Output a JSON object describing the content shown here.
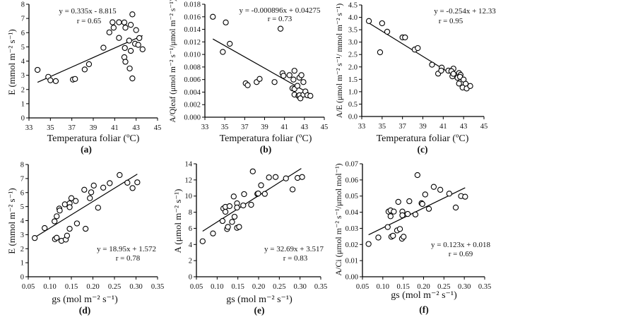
{
  "figure": {
    "background": "#ffffff",
    "marker_color": "#000000",
    "line_color": "#000000"
  },
  "chart_data": [
    {
      "id": "a",
      "type": "scatter",
      "panel_label": "(a)",
      "xlabel": "Temperatura foliar (ºC)",
      "ylabel": "E (mmol m⁻² s⁻¹)",
      "xlim": [
        33,
        45
      ],
      "ylim": [
        0,
        8
      ],
      "xticks": [
        33,
        35,
        37,
        39,
        41,
        43,
        45
      ],
      "xtick_labels": [
        "33",
        "35",
        "37",
        "39",
        "41",
        "43",
        "45"
      ],
      "yticks": [
        0,
        1,
        2,
        3,
        4,
        5,
        6,
        7,
        8
      ],
      "ytick_labels": [
        "0",
        "1",
        "2",
        "3",
        "4",
        "5",
        "6",
        "7",
        "8"
      ],
      "grid": false,
      "annotation": [
        "y = 0.335x - 8.815",
        "r = 0.65"
      ],
      "annotation_position": "top-center",
      "fit": {
        "slope": 0.335,
        "intercept": -8.815,
        "x_range": [
          33.8,
          43.6
        ]
      },
      "points": [
        [
          33.8,
          3.38
        ],
        [
          34.8,
          2.89
        ],
        [
          35.0,
          2.65
        ],
        [
          35.5,
          2.59
        ],
        [
          37.1,
          2.7
        ],
        [
          37.3,
          2.74
        ],
        [
          38.2,
          3.41
        ],
        [
          38.6,
          3.78
        ],
        [
          39.95,
          4.94
        ],
        [
          40.5,
          6.02
        ],
        [
          40.8,
          6.73
        ],
        [
          40.9,
          6.35
        ],
        [
          41.4,
          5.63
        ],
        [
          41.4,
          6.73
        ],
        [
          41.9,
          6.72
        ],
        [
          42.0,
          6.35
        ],
        [
          41.9,
          4.27
        ],
        [
          41.95,
          4.92
        ],
        [
          42.0,
          3.95
        ],
        [
          42.35,
          5.44
        ],
        [
          42.4,
          3.48
        ],
        [
          42.5,
          4.72
        ],
        [
          42.5,
          6.55
        ],
        [
          42.65,
          7.29
        ],
        [
          42.65,
          2.78
        ],
        [
          42.9,
          5.22
        ],
        [
          43.0,
          6.18
        ],
        [
          43.2,
          5.14
        ],
        [
          43.3,
          5.62
        ],
        [
          43.6,
          4.83
        ]
      ]
    },
    {
      "id": "b",
      "type": "scatter",
      "panel_label": "(b)",
      "xlabel": "Temperatura foliar (ºC)",
      "ylabel": "A/Qleaf (μmol m⁻² s⁻¹/μmol m⁻² s⁻¹)",
      "xlim": [
        33,
        45
      ],
      "ylim": [
        0,
        0.018
      ],
      "xticks": [
        33,
        35,
        37,
        39,
        41,
        43,
        45
      ],
      "xtick_labels": [
        "33",
        "35",
        "37",
        "39",
        "41",
        "43",
        "45"
      ],
      "yticks": [
        0,
        0.002,
        0.004,
        0.006,
        0.008,
        0.01,
        0.012,
        0.014,
        0.016,
        0.018
      ],
      "ytick_labels": [
        "0.000",
        "0.002",
        "0.004",
        "0.006",
        "0.008",
        "0.010",
        "0.012",
        "0.014",
        "0.016",
        "0.018"
      ],
      "grid": false,
      "annotation": [
        "y = -0.000896x + 0.04275",
        "r = 0.73"
      ],
      "annotation_position": "top-right",
      "fit": {
        "slope": -0.000896,
        "intercept": 0.04275,
        "x_range": [
          33.8,
          43.6
        ]
      },
      "points": [
        [
          33.8,
          0.016
        ],
        [
          35.1,
          0.0151
        ],
        [
          34.8,
          0.0104
        ],
        [
          35.5,
          0.0117
        ],
        [
          37.1,
          0.0054
        ],
        [
          37.3,
          0.0051
        ],
        [
          38.2,
          0.0056
        ],
        [
          38.5,
          0.0061
        ],
        [
          40.0,
          0.0056
        ],
        [
          40.6,
          0.0141
        ],
        [
          40.8,
          0.007
        ],
        [
          40.9,
          0.0066
        ],
        [
          41.5,
          0.0067
        ],
        [
          42.0,
          0.0074
        ],
        [
          41.9,
          0.006
        ],
        [
          41.8,
          0.0046
        ],
        [
          42.0,
          0.0045
        ],
        [
          42.0,
          0.0036
        ],
        [
          42.5,
          0.0063
        ],
        [
          42.7,
          0.0067
        ],
        [
          42.3,
          0.005
        ],
        [
          42.9,
          0.0056
        ],
        [
          42.4,
          0.0034
        ],
        [
          42.5,
          0.0035
        ],
        [
          42.6,
          0.003
        ],
        [
          42.9,
          0.0036
        ],
        [
          43.1,
          0.0041
        ],
        [
          43.3,
          0.0035
        ],
        [
          43.6,
          0.0034
        ]
      ]
    },
    {
      "id": "c",
      "type": "scatter",
      "panel_label": "(c)",
      "xlabel": "Temperatura foliar (ºC)",
      "ylabel": "A/E (μmol m⁻² s⁻¹/ mmol m⁻² s⁻¹)",
      "xlim": [
        33,
        45
      ],
      "ylim": [
        0,
        4.5
      ],
      "xticks": [
        33,
        35,
        37,
        39,
        41,
        43,
        45
      ],
      "xtick_labels": [
        "33",
        "35",
        "37",
        "39",
        "41",
        "43",
        "45"
      ],
      "yticks": [
        0,
        0.5,
        1.0,
        1.5,
        2.0,
        2.5,
        3.0,
        3.5,
        4.0,
        4.5
      ],
      "ytick_labels": [
        "0.0",
        "0.5",
        "1.0",
        "1.5",
        "2.0",
        "2.5",
        "3.0",
        "3.5",
        "4.0",
        "4.5"
      ],
      "grid": false,
      "annotation": [
        "y = -0.254x + 12.33",
        "r = 0.95"
      ],
      "annotation_position": "top-right",
      "fit": {
        "slope": -0.254,
        "intercept": 12.33,
        "x_range": [
          33.7,
          43.6
        ]
      },
      "points": [
        [
          33.7,
          3.85
        ],
        [
          35.0,
          3.76
        ],
        [
          34.8,
          2.59
        ],
        [
          35.5,
          3.42
        ],
        [
          37.0,
          3.19
        ],
        [
          37.25,
          3.19
        ],
        [
          38.2,
          2.7
        ],
        [
          38.5,
          2.76
        ],
        [
          39.9,
          2.09
        ],
        [
          40.5,
          1.73
        ],
        [
          40.85,
          1.97
        ],
        [
          40.8,
          1.85
        ],
        [
          41.5,
          1.85
        ],
        [
          42.0,
          1.93
        ],
        [
          41.8,
          1.83
        ],
        [
          41.9,
          1.62
        ],
        [
          42.0,
          1.72
        ],
        [
          42.55,
          1.75
        ],
        [
          42.7,
          1.68
        ],
        [
          42.4,
          1.56
        ],
        [
          42.65,
          1.6
        ],
        [
          42.55,
          1.33
        ],
        [
          43.0,
          1.49
        ],
        [
          43.2,
          1.32
        ],
        [
          42.9,
          1.17
        ],
        [
          43.3,
          1.13
        ],
        [
          43.65,
          1.23
        ]
      ]
    },
    {
      "id": "d",
      "type": "scatter",
      "panel_label": "(d)",
      "xlabel": "gs (mol m⁻² s⁻¹)",
      "ylabel": "E (mmol m⁻² s⁻¹)",
      "xlim": [
        0.05,
        0.35
      ],
      "ylim": [
        0,
        8
      ],
      "xticks": [
        0.05,
        0.1,
        0.15,
        0.2,
        0.25,
        0.3,
        0.35
      ],
      "xtick_labels": [
        "0.05",
        "0.10",
        "0.15",
        "0.20",
        "0.25",
        "0.30",
        "0.35"
      ],
      "yticks": [
        0,
        1,
        2,
        3,
        4,
        5,
        6,
        7,
        8
      ],
      "ytick_labels": [
        "0",
        "1",
        "2",
        "3",
        "4",
        "5",
        "6",
        "7",
        "8"
      ],
      "grid": false,
      "annotation": [
        "y = 18.95x + 1.572",
        "r = 0.78"
      ],
      "annotation_position": "bottom-right",
      "fit": {
        "slope": 18.95,
        "intercept": 1.572,
        "x_range": [
          0.065,
          0.303
        ]
      },
      "points": [
        [
          0.065,
          2.76
        ],
        [
          0.088,
          3.47
        ],
        [
          0.111,
          3.95
        ],
        [
          0.112,
          2.68
        ],
        [
          0.116,
          2.78
        ],
        [
          0.116,
          4.31
        ],
        [
          0.122,
          4.86
        ],
        [
          0.123,
          4.72
        ],
        [
          0.127,
          2.56
        ],
        [
          0.135,
          5.16
        ],
        [
          0.137,
          2.65
        ],
        [
          0.14,
          2.93
        ],
        [
          0.146,
          5.23
        ],
        [
          0.146,
          4.96
        ],
        [
          0.146,
          3.42
        ],
        [
          0.15,
          5.6
        ],
        [
          0.16,
          5.4
        ],
        [
          0.163,
          3.8
        ],
        [
          0.18,
          6.2
        ],
        [
          0.183,
          3.42
        ],
        [
          0.193,
          5.6
        ],
        [
          0.196,
          6.02
        ],
        [
          0.202,
          6.5
        ],
        [
          0.212,
          4.92
        ],
        [
          0.224,
          6.35
        ],
        [
          0.239,
          6.67
        ],
        [
          0.262,
          7.25
        ],
        [
          0.28,
          6.7
        ],
        [
          0.292,
          6.32
        ],
        [
          0.303,
          6.73
        ]
      ]
    },
    {
      "id": "e",
      "type": "scatter",
      "panel_label": "(e)",
      "xlabel": "gs (mol m⁻² s⁻¹)",
      "ylabel": "A (μmol m⁻² s⁻¹)",
      "xlim": [
        0.05,
        0.35
      ],
      "ylim": [
        0,
        14
      ],
      "xticks": [
        0.05,
        0.1,
        0.15,
        0.2,
        0.25,
        0.3,
        0.35
      ],
      "xtick_labels": [
        "0.05",
        "0.10",
        "0.15",
        "0.20",
        "0.25",
        "0.30",
        "0.35"
      ],
      "yticks": [
        0,
        2,
        4,
        6,
        8,
        10,
        12,
        14
      ],
      "ytick_labels": [
        "0",
        "2",
        "4",
        "6",
        "8",
        "10",
        "12",
        "14"
      ],
      "grid": false,
      "annotation": [
        "y = 32.69x + 3.517",
        "r = 0.83"
      ],
      "annotation_position": "bottom-right",
      "fit": {
        "slope": 32.69,
        "intercept": 3.517,
        "x_range": [
          0.065,
          0.303
        ]
      },
      "points": [
        [
          0.065,
          4.4
        ],
        [
          0.09,
          5.37
        ],
        [
          0.113,
          6.91
        ],
        [
          0.115,
          8.46
        ],
        [
          0.12,
          8.66
        ],
        [
          0.12,
          8.05
        ],
        [
          0.124,
          5.92
        ],
        [
          0.126,
          6.18
        ],
        [
          0.13,
          8.75
        ],
        [
          0.136,
          6.8
        ],
        [
          0.14,
          9.95
        ],
        [
          0.142,
          7.44
        ],
        [
          0.148,
          6.06
        ],
        [
          0.148,
          9.1
        ],
        [
          0.148,
          8.58
        ],
        [
          0.153,
          6.18
        ],
        [
          0.163,
          8.84
        ],
        [
          0.165,
          10.24
        ],
        [
          0.182,
          8.92
        ],
        [
          0.186,
          13.06
        ],
        [
          0.197,
          10.27
        ],
        [
          0.199,
          10.32
        ],
        [
          0.206,
          11.34
        ],
        [
          0.215,
          10.27
        ],
        [
          0.225,
          12.31
        ],
        [
          0.241,
          12.36
        ],
        [
          0.266,
          12.19
        ],
        [
          0.282,
          10.82
        ],
        [
          0.294,
          12.25
        ],
        [
          0.305,
          12.36
        ]
      ]
    },
    {
      "id": "f",
      "type": "scatter",
      "panel_label": "(f)",
      "xlabel": "gs (mol m⁻² s⁻¹)",
      "ylabel": "A/Ci (μmol m⁻² s⁻¹/μmol mol⁻¹)",
      "xlim": [
        0.05,
        0.35
      ],
      "ylim": [
        0,
        0.07
      ],
      "xticks": [
        0.05,
        0.1,
        0.15,
        0.2,
        0.25,
        0.3,
        0.35
      ],
      "xtick_labels": [
        "0.05",
        "0.10",
        "0.15",
        "0.20",
        "0.25",
        "0.30",
        "0.35"
      ],
      "yticks": [
        0,
        0.01,
        0.02,
        0.03,
        0.04,
        0.05,
        0.06,
        0.07
      ],
      "ytick_labels": [
        "0.00",
        "0.01",
        "0.02",
        "0.03",
        "0.04",
        "0.05",
        "0.06",
        "0.07"
      ],
      "grid": false,
      "annotation": [
        "y = 0.123x + 0.018",
        "r = 0.69"
      ],
      "annotation_position": "bottom-right",
      "fit": {
        "slope": 0.123,
        "intercept": 0.018,
        "x_range": [
          0.065,
          0.302
        ]
      },
      "points": [
        [
          0.065,
          0.0203
        ],
        [
          0.089,
          0.0243
        ],
        [
          0.112,
          0.0308
        ],
        [
          0.114,
          0.0404
        ],
        [
          0.119,
          0.0411
        ],
        [
          0.119,
          0.0375
        ],
        [
          0.121,
          0.0248
        ],
        [
          0.125,
          0.0254
        ],
        [
          0.127,
          0.0404
        ],
        [
          0.135,
          0.0287
        ],
        [
          0.138,
          0.0464
        ],
        [
          0.142,
          0.0296
        ],
        [
          0.148,
          0.0404
        ],
        [
          0.148,
          0.0381
        ],
        [
          0.147,
          0.0236
        ],
        [
          0.151,
          0.0248
        ],
        [
          0.161,
          0.0389
        ],
        [
          0.165,
          0.0468
        ],
        [
          0.18,
          0.0386
        ],
        [
          0.185,
          0.063
        ],
        [
          0.195,
          0.0456
        ],
        [
          0.197,
          0.0451
        ],
        [
          0.204,
          0.051
        ],
        [
          0.213,
          0.0421
        ],
        [
          0.225,
          0.0557
        ],
        [
          0.241,
          0.0539
        ],
        [
          0.263,
          0.0515
        ],
        [
          0.279,
          0.0429
        ],
        [
          0.292,
          0.05
        ],
        [
          0.302,
          0.0496
        ]
      ]
    }
  ]
}
